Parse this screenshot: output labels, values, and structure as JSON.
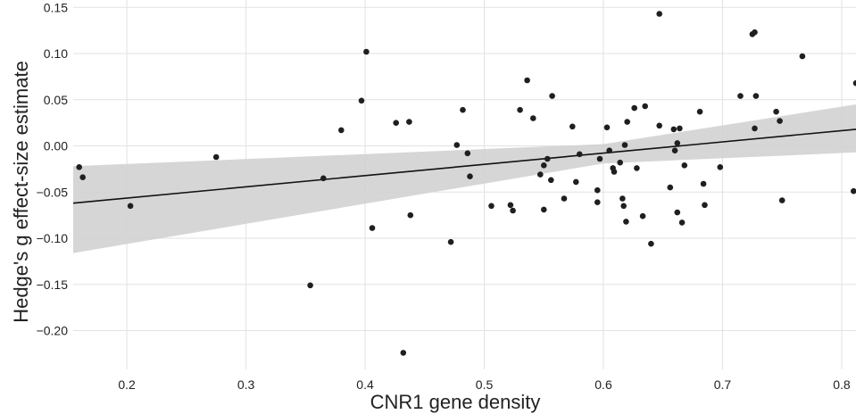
{
  "chart_data": {
    "type": "scatter",
    "title": "",
    "xlabel": "CNR1 gene density",
    "ylabel": "Hedge's g effect-size estimate",
    "xlim": [
      0.155,
      0.812
    ],
    "ylim": [
      -0.242,
      0.158
    ],
    "grid": true,
    "x_ticks": [
      0.2,
      0.3,
      0.4,
      0.5,
      0.6,
      0.7,
      0.8
    ],
    "x_tick_labels": [
      "0.2",
      "0.3",
      "0.4",
      "0.5",
      "0.6",
      "0.7",
      "0.8"
    ],
    "y_ticks": [
      0.15,
      0.1,
      0.05,
      0.0,
      -0.05,
      -0.1,
      -0.15,
      -0.2
    ],
    "y_tick_labels": [
      "0.15",
      "0.10",
      "0.05",
      "0.00",
      "−0.05",
      "−0.10",
      "−0.15",
      "−0.20"
    ],
    "colors": {
      "points": "#1f1f1f",
      "line": "#111111",
      "band": "#d2d2d2",
      "grid": "#e2e2e2"
    },
    "regression": {
      "x": [
        0.155,
        0.812
      ],
      "y": [
        -0.062,
        0.018
      ],
      "ci_lower": [
        -0.116,
        -0.007
      ],
      "ci_upper": [
        -0.022,
        0.045
      ],
      "ci_mid_x": 0.6,
      "ci_mid": [
        -0.019,
        0.002
      ]
    },
    "points": [
      [
        0.16,
        -0.023
      ],
      [
        0.163,
        -0.034
      ],
      [
        0.203,
        -0.065
      ],
      [
        0.275,
        -0.012
      ],
      [
        0.354,
        -0.151
      ],
      [
        0.365,
        -0.035
      ],
      [
        0.38,
        0.017
      ],
      [
        0.397,
        0.049
      ],
      [
        0.401,
        0.102
      ],
      [
        0.406,
        -0.089
      ],
      [
        0.426,
        0.025
      ],
      [
        0.432,
        -0.224
      ],
      [
        0.437,
        0.026
      ],
      [
        0.438,
        -0.075
      ],
      [
        0.472,
        -0.104
      ],
      [
        0.477,
        0.001
      ],
      [
        0.482,
        0.039
      ],
      [
        0.486,
        -0.008
      ],
      [
        0.488,
        -0.033
      ],
      [
        0.506,
        -0.065
      ],
      [
        0.522,
        -0.064
      ],
      [
        0.524,
        -0.07
      ],
      [
        0.53,
        0.039
      ],
      [
        0.536,
        0.071
      ],
      [
        0.541,
        0.03
      ],
      [
        0.547,
        -0.031
      ],
      [
        0.55,
        -0.069
      ],
      [
        0.55,
        -0.021
      ],
      [
        0.553,
        -0.014
      ],
      [
        0.556,
        -0.037
      ],
      [
        0.557,
        0.054
      ],
      [
        0.567,
        -0.057
      ],
      [
        0.574,
        0.021
      ],
      [
        0.577,
        -0.039
      ],
      [
        0.58,
        -0.009
      ],
      [
        0.595,
        -0.048
      ],
      [
        0.595,
        -0.061
      ],
      [
        0.597,
        -0.014
      ],
      [
        0.603,
        0.02
      ],
      [
        0.605,
        -0.005
      ],
      [
        0.608,
        -0.024
      ],
      [
        0.609,
        -0.028
      ],
      [
        0.614,
        -0.018
      ],
      [
        0.616,
        -0.057
      ],
      [
        0.617,
        -0.065
      ],
      [
        0.618,
        0.001
      ],
      [
        0.619,
        -0.082
      ],
      [
        0.62,
        0.026
      ],
      [
        0.626,
        0.041
      ],
      [
        0.628,
        -0.024
      ],
      [
        0.633,
        -0.076
      ],
      [
        0.635,
        0.043
      ],
      [
        0.64,
        -0.106
      ],
      [
        0.647,
        0.143
      ],
      [
        0.647,
        0.022
      ],
      [
        0.656,
        -0.045
      ],
      [
        0.659,
        0.018
      ],
      [
        0.66,
        -0.005
      ],
      [
        0.662,
        -0.072
      ],
      [
        0.662,
        0.003
      ],
      [
        0.664,
        0.019
      ],
      [
        0.666,
        -0.083
      ],
      [
        0.668,
        -0.021
      ],
      [
        0.681,
        0.037
      ],
      [
        0.684,
        -0.041
      ],
      [
        0.685,
        -0.064
      ],
      [
        0.698,
        -0.023
      ],
      [
        0.715,
        0.054
      ],
      [
        0.725,
        0.121
      ],
      [
        0.727,
        0.123
      ],
      [
        0.727,
        0.019
      ],
      [
        0.728,
        0.054
      ],
      [
        0.745,
        0.037
      ],
      [
        0.748,
        0.027
      ],
      [
        0.75,
        -0.059
      ],
      [
        0.767,
        0.097
      ],
      [
        0.81,
        -0.049
      ],
      [
        0.812,
        0.068
      ]
    ]
  }
}
